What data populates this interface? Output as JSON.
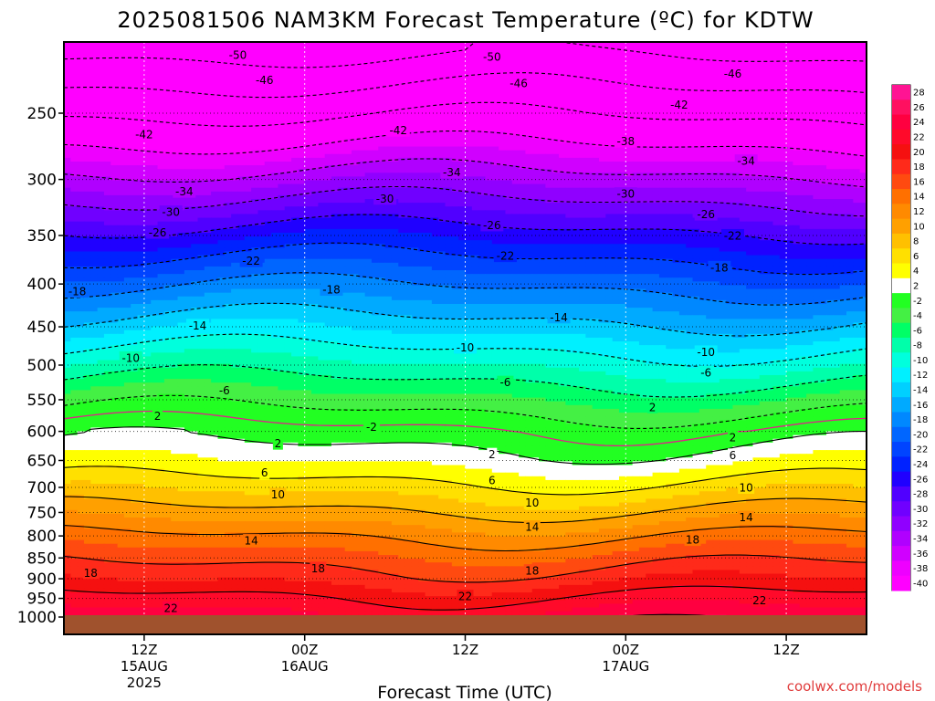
{
  "chart_data": {
    "type": "heatmap",
    "title": "2025081506 NAM3KM Forecast Temperature (ºC) for KDTW",
    "xlabel": "Forecast Time (UTC)",
    "ylabel": "",
    "credit": "coolwx.com/models",
    "x_ticks": [
      {
        "hour": 6,
        "lines": [
          "12Z",
          "15AUG",
          "2025"
        ]
      },
      {
        "hour": 18,
        "lines": [
          "00Z",
          "16AUG"
        ]
      },
      {
        "hour": 30,
        "lines": [
          "12Z"
        ]
      },
      {
        "hour": 42,
        "lines": [
          "00Z",
          "17AUG"
        ]
      },
      {
        "hour": 54,
        "lines": [
          "12Z"
        ]
      }
    ],
    "xlim_hours": [
      0,
      60
    ],
    "y_scale": "log",
    "ylim_hPa": [
      1010,
      200
    ],
    "y_ticks": [
      "250",
      "300",
      "350",
      "400",
      "450",
      "500",
      "550",
      "600",
      "650",
      "700",
      "750",
      "800",
      "850",
      "900",
      "950",
      "1000"
    ],
    "colorbar": {
      "levels": [
        "28",
        "26",
        "24",
        "22",
        "20",
        "18",
        "16",
        "14",
        "12",
        "10",
        "8",
        "6",
        "4",
        "2",
        "-2",
        "-4",
        "-6",
        "-8",
        "-10",
        "-12",
        "-14",
        "-16",
        "-18",
        "-20",
        "-22",
        "-24",
        "-26",
        "-28",
        "-30",
        "-32",
        "-34",
        "-36",
        "-38",
        "-40"
      ],
      "colors": [
        "#ff1493",
        "#ff1060",
        "#ff0040",
        "#ff0a2a",
        "#f51010",
        "#ff2a1a",
        "#ff4a10",
        "#ff7000",
        "#ff8a00",
        "#ffa000",
        "#ffc000",
        "#ffe000",
        "#ffff00",
        "#ffffff",
        "#22ff22",
        "#44f044",
        "#00ff66",
        "#00ffaa",
        "#00ffdd",
        "#00f0ff",
        "#00d0ff",
        "#00aaff",
        "#0088ff",
        "#0066ff",
        "#0044ff",
        "#0022ff",
        "#2000ff",
        "#5000ff",
        "#7000ff",
        "#9000ff",
        "#b000ff",
        "#d000ff",
        "#ee00ff",
        "#ff00ff"
      ]
    },
    "isotherm_labels": [
      {
        "text": "-50",
        "hour": 13,
        "p": 213
      },
      {
        "text": "-50",
        "hour": 32,
        "p": 214
      },
      {
        "text": "-46",
        "hour": 15,
        "p": 228
      },
      {
        "text": "-46",
        "hour": 34,
        "p": 230
      },
      {
        "text": "-46",
        "hour": 50,
        "p": 224
      },
      {
        "text": "-42",
        "hour": 6,
        "p": 265
      },
      {
        "text": "-42",
        "hour": 25,
        "p": 262
      },
      {
        "text": "-42",
        "hour": 46,
        "p": 244
      },
      {
        "text": "-38",
        "hour": 42,
        "p": 270
      },
      {
        "text": "-34",
        "hour": 9,
        "p": 310
      },
      {
        "text": "-34",
        "hour": 29,
        "p": 294
      },
      {
        "text": "-34",
        "hour": 51,
        "p": 285
      },
      {
        "text": "-30",
        "hour": 8,
        "p": 328
      },
      {
        "text": "-30",
        "hour": 24,
        "p": 316
      },
      {
        "text": "-30",
        "hour": 42,
        "p": 312
      },
      {
        "text": "-26",
        "hour": 7,
        "p": 347
      },
      {
        "text": "-26",
        "hour": 32,
        "p": 340
      },
      {
        "text": "-26",
        "hour": 48,
        "p": 330
      },
      {
        "text": "-22",
        "hour": 14,
        "p": 375
      },
      {
        "text": "-22",
        "hour": 33,
        "p": 370
      },
      {
        "text": "-22",
        "hour": 50,
        "p": 350
      },
      {
        "text": "-18",
        "hour": 1,
        "p": 408
      },
      {
        "text": "-18",
        "hour": 20,
        "p": 406
      },
      {
        "text": "-18",
        "hour": 49,
        "p": 382
      },
      {
        "text": "-14",
        "hour": 10,
        "p": 448
      },
      {
        "text": "-14",
        "hour": 37,
        "p": 438
      },
      {
        "text": "-10",
        "hour": 5,
        "p": 490
      },
      {
        "text": "-10",
        "hour": 30,
        "p": 476
      },
      {
        "text": "-10",
        "hour": 48,
        "p": 482
      },
      {
        "text": "-6",
        "hour": 12,
        "p": 536
      },
      {
        "text": "-6",
        "hour": 33,
        "p": 524
      },
      {
        "text": "-6",
        "hour": 48,
        "p": 510
      },
      {
        "text": "-2",
        "hour": 23,
        "p": 592
      },
      {
        "text": "2",
        "hour": 7,
        "p": 575
      },
      {
        "text": "2",
        "hour": 44,
        "p": 561
      },
      {
        "text": "2",
        "hour": 16,
        "p": 620
      },
      {
        "text": "2",
        "hour": 32,
        "p": 639
      },
      {
        "text": "2",
        "hour": 50,
        "p": 610
      },
      {
        "text": "6",
        "hour": 15,
        "p": 672
      },
      {
        "text": "6",
        "hour": 32,
        "p": 686
      },
      {
        "text": "6",
        "hour": 50,
        "p": 640
      },
      {
        "text": "10",
        "hour": 16,
        "p": 713
      },
      {
        "text": "10",
        "hour": 35,
        "p": 730
      },
      {
        "text": "10",
        "hour": 51,
        "p": 700
      },
      {
        "text": "14",
        "hour": 14,
        "p": 810
      },
      {
        "text": "14",
        "hour": 35,
        "p": 780
      },
      {
        "text": "14",
        "hour": 51,
        "p": 760
      },
      {
        "text": "18",
        "hour": 2,
        "p": 885
      },
      {
        "text": "18",
        "hour": 19,
        "p": 874
      },
      {
        "text": "18",
        "hour": 35,
        "p": 880
      },
      {
        "text": "18",
        "hour": 47,
        "p": 808
      },
      {
        "text": "22",
        "hour": 30,
        "p": 944
      },
      {
        "text": "22",
        "hour": 52,
        "p": 955
      },
      {
        "text": "22",
        "hour": 8,
        "p": 975
      }
    ]
  }
}
